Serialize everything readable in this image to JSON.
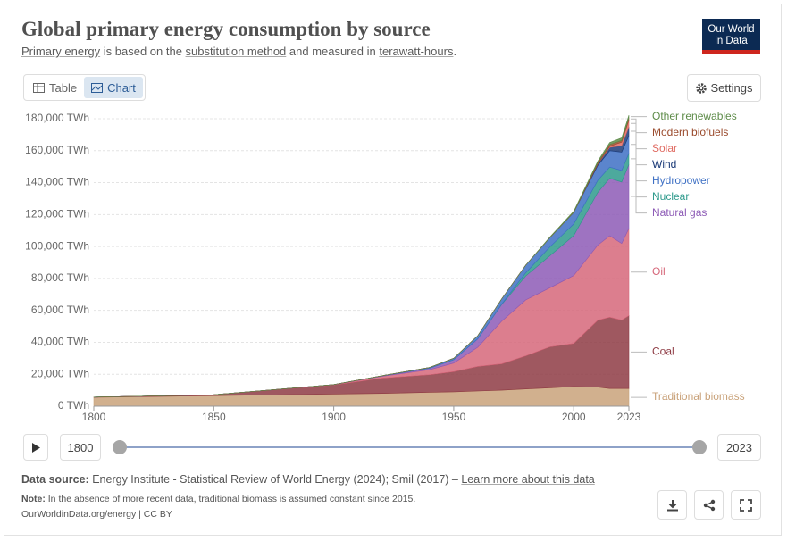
{
  "header": {
    "title": "Global primary energy consumption by source",
    "subtitle": [
      "Primary energy",
      " is based on the ",
      "substitution method",
      " and measured in ",
      "terawatt-hours",
      "."
    ],
    "logo": [
      "Our World",
      "in Data"
    ]
  },
  "controls": {
    "table": "Table",
    "chart": "Chart",
    "settings": "Settings"
  },
  "chart_data": {
    "type": "stacked-area",
    "x": [
      1800,
      1850,
      1900,
      1920,
      1940,
      1950,
      1960,
      1970,
      1980,
      1990,
      2000,
      2010,
      2015,
      2020,
      2023
    ],
    "xlim": [
      1800,
      2023
    ],
    "xticks": [
      1800,
      1850,
      1900,
      1950,
      2000,
      2023
    ],
    "ylim": [
      0,
      180000
    ],
    "yticks": [
      {
        "value": 0,
        "label": "0 TWh"
      },
      {
        "value": 20000,
        "label": "20,000 TWh"
      },
      {
        "value": 40000,
        "label": "40,000 TWh"
      },
      {
        "value": 60000,
        "label": "60,000 TWh"
      },
      {
        "value": 80000,
        "label": "80,000 TWh"
      },
      {
        "value": 100000,
        "label": "100,000 TWh"
      },
      {
        "value": 120000,
        "label": "120,000 TWh"
      },
      {
        "value": 140000,
        "label": "140,000 TWh"
      },
      {
        "value": 160000,
        "label": "160,000 TWh"
      },
      {
        "value": 180000,
        "label": "180,000 TWh"
      }
    ],
    "grid": true,
    "series": [
      {
        "name": "Traditional biomass",
        "color": "#c9a27a",
        "values": [
          5600,
          6600,
          7600,
          8000,
          8700,
          9000,
          9500,
          10000,
          10800,
          11500,
          12300,
          12000,
          11100,
          11100,
          11100
        ]
      },
      {
        "name": "Coal",
        "color": "#8e3b44",
        "values": [
          100,
          570,
          5700,
          9600,
          11000,
          12600,
          15400,
          16500,
          20700,
          25600,
          27000,
          41800,
          44600,
          42800,
          45600
        ]
      },
      {
        "name": "Oil",
        "color": "#d6677a",
        "values": [
          0,
          0,
          180,
          1100,
          3200,
          5400,
          12000,
          26700,
          35000,
          37000,
          42500,
          47000,
          51000,
          48000,
          54600
        ]
      },
      {
        "name": "Natural gas",
        "color": "#8d5bb6",
        "values": [
          0,
          0,
          60,
          230,
          870,
          2100,
          5200,
          10500,
          15000,
          20000,
          25000,
          33000,
          36000,
          38500,
          40100
        ]
      },
      {
        "name": "Nuclear",
        "color": "#2e9a8c",
        "values": [
          0,
          0,
          0,
          0,
          0,
          0,
          0,
          230,
          2000,
          5500,
          7300,
          7500,
          7000,
          7200,
          7000
        ]
      },
      {
        "name": "Hydropower",
        "color": "#3e70c4",
        "values": [
          0,
          0,
          0,
          100,
          500,
          900,
          2000,
          3300,
          4800,
          5800,
          7200,
          9300,
          10300,
          11500,
          11000
        ]
      },
      {
        "name": "Wind",
        "color": "#1c3b78",
        "values": [
          0,
          0,
          0,
          0,
          0,
          0,
          0,
          0,
          0,
          0,
          80,
          900,
          2100,
          4000,
          5500
        ]
      },
      {
        "name": "Solar",
        "color": "#e06b62",
        "values": [
          0,
          0,
          0,
          0,
          0,
          0,
          0,
          0,
          0,
          0,
          0,
          80,
          650,
          2200,
          4300
        ]
      },
      {
        "name": "Modern biofuels",
        "color": "#9a4a2c",
        "values": [
          0,
          0,
          0,
          0,
          0,
          0,
          0,
          0,
          0,
          100,
          150,
          900,
          1100,
          1100,
          1300
        ]
      },
      {
        "name": "Other renewables",
        "color": "#5d8b48",
        "values": [
          0,
          0,
          0,
          0,
          0,
          0,
          0,
          0,
          0,
          300,
          550,
          900,
          1300,
          1600,
          1700
        ]
      }
    ]
  },
  "timeline": {
    "start": 1800,
    "end": 2023
  },
  "footer": {
    "source_label": "Data source:",
    "source": "Energy Institute - Statistical Review of World Energy (2024); Smil (2017) – ",
    "learn_more": "Learn more about this data",
    "note_label": "Note:",
    "note": "In the absence of more recent data, traditional biomass is assumed constant since 2015.",
    "credit": "OurWorldinData.org/energy | CC BY"
  }
}
